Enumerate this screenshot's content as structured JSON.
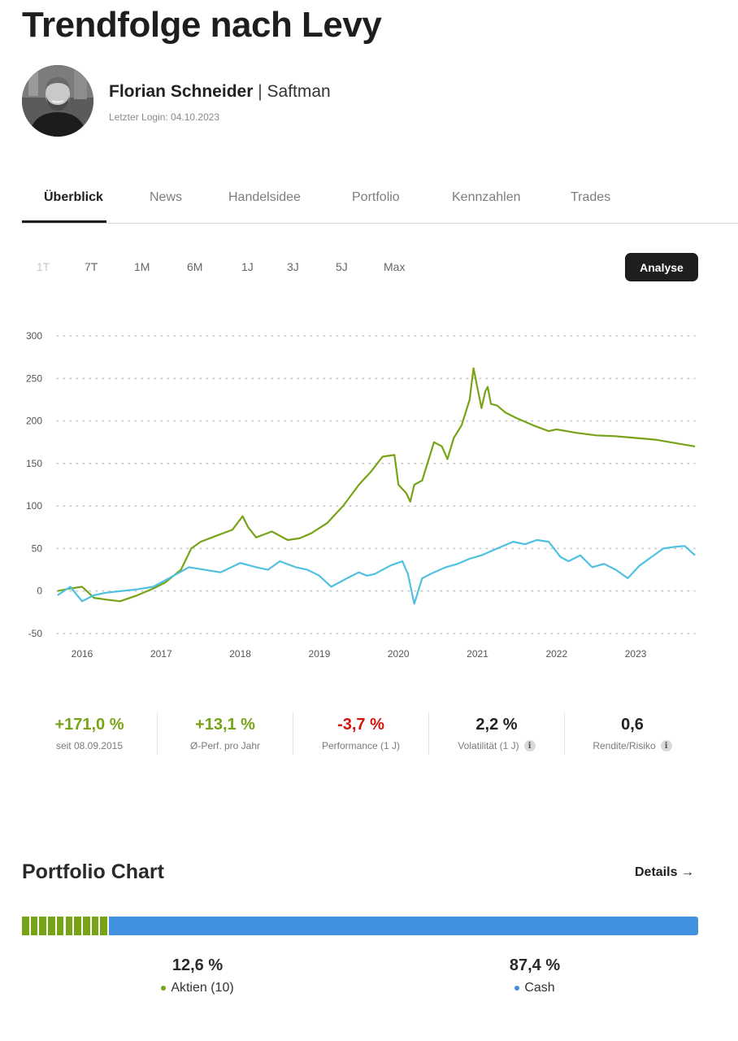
{
  "header": {
    "title": "Trendfolge nach Levy",
    "user_name": "Florian Schneider",
    "separator": "|",
    "user_alias": "Saftman",
    "last_login": "Letzter Login: 04.10.2023"
  },
  "tabs": [
    {
      "label": "Überblick",
      "active": true
    },
    {
      "label": "News"
    },
    {
      "label": "Handelsidee"
    },
    {
      "label": "Portfolio"
    },
    {
      "label": "Kennzahlen"
    },
    {
      "label": "Trades"
    }
  ],
  "ranges": [
    {
      "label": "1T",
      "disabled": true
    },
    {
      "label": "7T"
    },
    {
      "label": "1M"
    },
    {
      "label": "6M"
    },
    {
      "label": "1J"
    },
    {
      "label": "3J"
    },
    {
      "label": "5J"
    },
    {
      "label": "Max"
    }
  ],
  "analyse_label": "Analyse",
  "colors": {
    "green": "#77a317",
    "blue": "#4fc1e0",
    "cash_blue": "#4290e0",
    "red": "#d5140e",
    "dark": "#1e1e1e"
  },
  "chart_data": {
    "type": "line",
    "title": "",
    "xlabel": "",
    "ylabel": "",
    "ylim": [
      -50,
      300
    ],
    "y_ticks": [
      "300",
      "250",
      "200",
      "150",
      "100",
      "50",
      "0",
      "-50"
    ],
    "x_ticks": [
      "2016",
      "2017",
      "2018",
      "2019",
      "2020",
      "2021",
      "2022",
      "2023"
    ],
    "grid": "horizontal dotted",
    "series": [
      {
        "color": "#77a317",
        "x": [
          2015.69,
          2015.85,
          2016.0,
          2016.15,
          2016.3,
          2016.48,
          2016.7,
          2016.9,
          2017.05,
          2017.25,
          2017.38,
          2017.5,
          2017.7,
          2017.9,
          2018.03,
          2018.1,
          2018.2,
          2018.4,
          2018.6,
          2018.75,
          2018.9,
          2019.1,
          2019.3,
          2019.5,
          2019.65,
          2019.8,
          2019.95,
          2020.0,
          2020.1,
          2020.15,
          2020.2,
          2020.3,
          2020.45,
          2020.55,
          2020.62,
          2020.7,
          2020.8,
          2020.9,
          2020.95,
          2021.05,
          2021.1,
          2021.13,
          2021.17,
          2021.25,
          2021.35,
          2021.5,
          2021.7,
          2021.9,
          2022.0,
          2022.25,
          2022.5,
          2022.75,
          2023.0,
          2023.25,
          2023.5,
          2023.75
        ],
        "y": [
          0,
          3,
          5,
          -8,
          -10,
          -12,
          -5,
          3,
          10,
          25,
          50,
          58,
          65,
          72,
          88,
          75,
          63,
          70,
          60,
          62,
          68,
          80,
          100,
          125,
          140,
          158,
          160,
          125,
          115,
          105,
          125,
          130,
          175,
          170,
          155,
          180,
          195,
          225,
          262,
          215,
          235,
          240,
          220,
          218,
          210,
          203,
          195,
          188,
          190,
          186,
          183,
          182,
          180,
          178,
          174,
          170
        ]
      },
      {
        "color": "#4fc1e0",
        "x": [
          2015.69,
          2015.85,
          2016.0,
          2016.15,
          2016.3,
          2016.5,
          2016.7,
          2016.9,
          2017.1,
          2017.35,
          2017.55,
          2017.75,
          2018.0,
          2018.2,
          2018.35,
          2018.5,
          2018.7,
          2018.85,
          2019.0,
          2019.15,
          2019.35,
          2019.5,
          2019.6,
          2019.7,
          2019.9,
          2020.05,
          2020.12,
          2020.2,
          2020.3,
          2020.45,
          2020.6,
          2020.75,
          2020.9,
          2021.05,
          2021.25,
          2021.45,
          2021.6,
          2021.75,
          2021.9,
          2022.05,
          2022.15,
          2022.3,
          2022.45,
          2022.6,
          2022.75,
          2022.9,
          2023.05,
          2023.2,
          2023.35,
          2023.5,
          2023.62,
          2023.75
        ],
        "y": [
          -5,
          5,
          -12,
          -5,
          -2,
          0,
          2,
          5,
          15,
          28,
          25,
          22,
          33,
          28,
          25,
          35,
          28,
          25,
          18,
          5,
          15,
          22,
          18,
          20,
          30,
          35,
          20,
          -15,
          15,
          22,
          28,
          32,
          38,
          42,
          50,
          58,
          55,
          60,
          58,
          40,
          35,
          42,
          28,
          32,
          25,
          15,
          30,
          40,
          50,
          52,
          53,
          42
        ]
      }
    ]
  },
  "kpis": [
    {
      "value": "+171,0 %",
      "label": "seit 08.09.2015",
      "tone": "pos"
    },
    {
      "value": "+13,1 %",
      "label": "Ø-Perf. pro Jahr",
      "tone": "pos"
    },
    {
      "value": "-3,7 %",
      "label": "Performance (1 J)",
      "tone": "neg"
    },
    {
      "value": "2,2 %",
      "label": "Volatilität (1 J)",
      "tone": "neutral",
      "info": true
    },
    {
      "value": "0,6",
      "label": "Rendite/Risiko",
      "tone": "neutral",
      "info": true
    }
  ],
  "portfolio": {
    "title": "Portfolio Chart",
    "details_label": "Details →",
    "stocks_fraction": 0.126,
    "stocks_pct": "12,6 %",
    "stocks_label": "Aktien (10)",
    "stocks_count": 10,
    "cash_pct": "87,4 %",
    "cash_label": "Cash"
  }
}
